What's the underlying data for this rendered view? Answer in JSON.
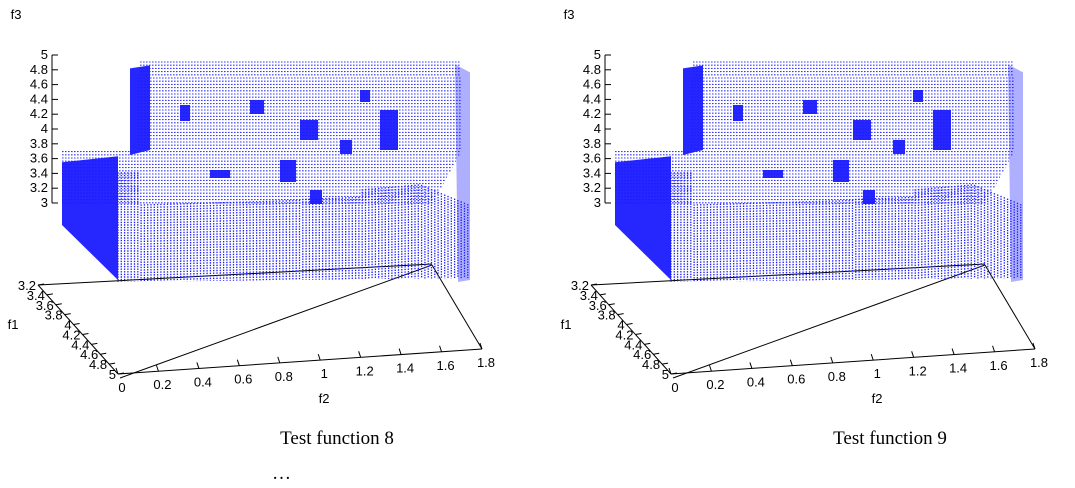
{
  "chart_data": [
    {
      "type": "scatter",
      "subtype": "3d-surface-points",
      "title": "",
      "caption": "Test function 8",
      "xlabel": "f2",
      "ylabel": "f1",
      "zlabel": "f3",
      "xlim": [
        0,
        1.8
      ],
      "ylim": [
        3.2,
        5
      ],
      "zlim": [
        3,
        5
      ],
      "x_ticks": [
        "0",
        "0.2",
        "0.4",
        "0.6",
        "0.8",
        "1",
        "1.2",
        "1.4",
        "1.6",
        "1.8"
      ],
      "y_ticks": [
        "3.2",
        "3.4",
        "3.6",
        "3.8",
        "4",
        "4.2",
        "4.4",
        "4.6",
        "4.8",
        "5"
      ],
      "z_ticks": [
        "3",
        "3.2",
        "3.4",
        "3.6",
        "3.8",
        "4",
        "4.2",
        "4.4",
        "4.6",
        "4.8",
        "5"
      ],
      "grid": false,
      "series_color": "#1a1aff",
      "front_height": 3.55,
      "top_height": 4.9
    },
    {
      "type": "scatter",
      "subtype": "3d-surface-points",
      "title": "",
      "caption": "Test function 9",
      "xlabel": "f2",
      "ylabel": "f1",
      "zlabel": "f3",
      "xlim": [
        0,
        1.8
      ],
      "ylim": [
        3.2,
        5
      ],
      "zlim": [
        3,
        5
      ],
      "x_ticks": [
        "0",
        "0.2",
        "0.4",
        "0.6",
        "0.8",
        "1",
        "1.2",
        "1.4",
        "1.6",
        "1.8"
      ],
      "y_ticks": [
        "3.2",
        "3.4",
        "3.6",
        "3.8",
        "4",
        "4.2",
        "4.4",
        "4.6",
        "4.8",
        "5"
      ],
      "z_ticks": [
        "3",
        "3.2",
        "3.4",
        "3.6",
        "3.8",
        "4",
        "4.2",
        "4.4",
        "4.6",
        "4.8",
        "5"
      ],
      "grid": false,
      "series_color": "#1a1aff",
      "front_height": 3.55,
      "top_height": 4.9
    }
  ],
  "footer": {
    "ellipsis": "…"
  }
}
